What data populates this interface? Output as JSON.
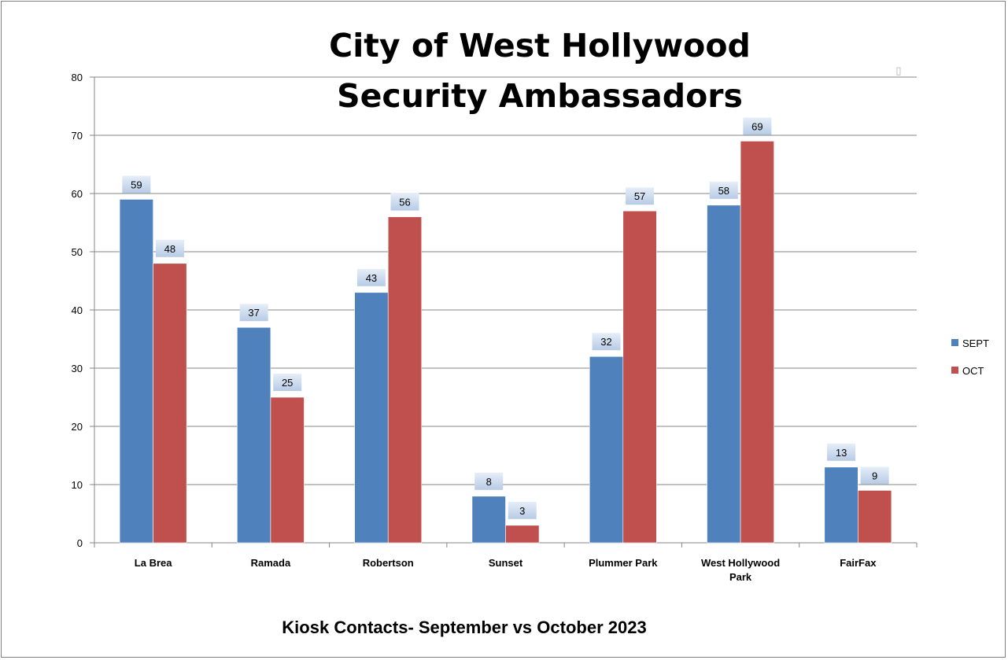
{
  "chart_data": {
    "type": "bar",
    "title_lines": [
      "City of West Hollywood",
      "Security Ambassadors"
    ],
    "subtitle": "Kiosk Contacts- September vs October 2023",
    "categories": [
      [
        "La Brea"
      ],
      [
        "Ramada"
      ],
      [
        "Robertson"
      ],
      [
        "Sunset"
      ],
      [
        "Plummer Park"
      ],
      [
        "West Hollywood",
        "Park"
      ],
      [
        "FairFax"
      ]
    ],
    "series": [
      {
        "name": "SEPT",
        "color": "#4f81bd",
        "values": [
          59,
          37,
          43,
          8,
          32,
          58,
          13
        ]
      },
      {
        "name": "OCT",
        "color": "#c0504d",
        "values": [
          48,
          25,
          56,
          3,
          57,
          69,
          9
        ]
      }
    ],
    "ylim": [
      0,
      80
    ],
    "yticks": [
      0,
      10,
      20,
      30,
      40,
      50,
      60,
      70,
      80
    ],
    "grid": true,
    "legend_position": "right",
    "data_labels": true,
    "placeholder_glyph": "▯"
  }
}
